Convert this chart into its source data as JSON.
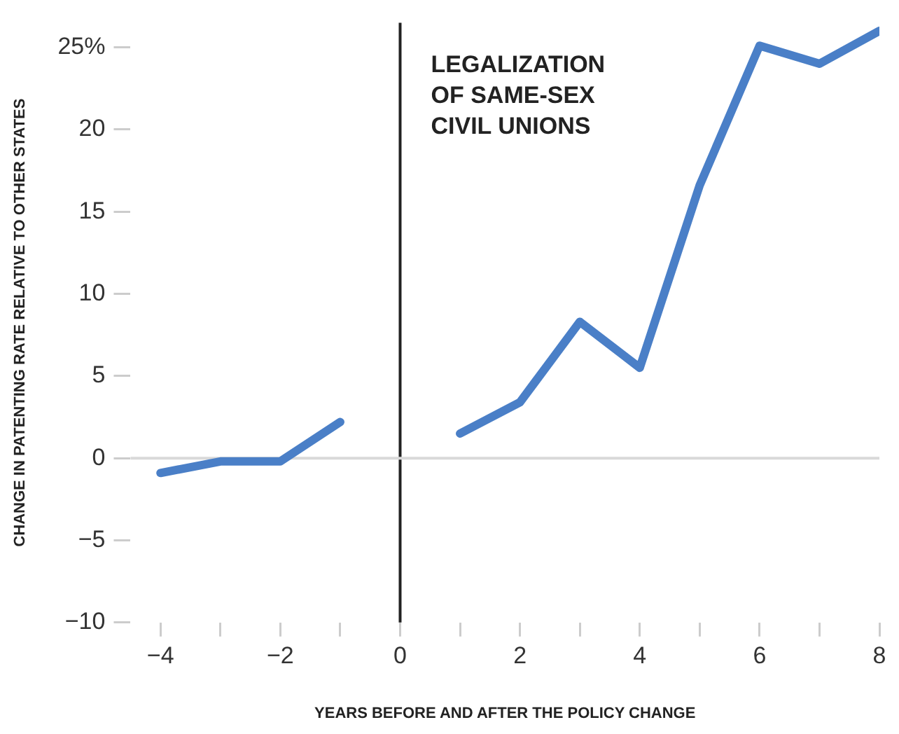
{
  "chart_data": {
    "type": "line",
    "xlabel": "YEARS BEFORE AND AFTER THE POLICY CHANGE",
    "ylabel": "CHANGE IN PATENTING RATE RELATIVE TO OTHER STATES",
    "x": [
      -4,
      -3,
      -2,
      -1,
      0,
      1,
      2,
      3,
      4,
      5,
      6,
      7,
      8
    ],
    "series": [
      {
        "color": "#4a7fc7",
        "values": [
          -0.9,
          -0.2,
          -0.2,
          2.2,
          null,
          1.5,
          3.4,
          8.3,
          5.5,
          16.6,
          25.1,
          24,
          26
        ]
      }
    ],
    "xlim": [
      -4.5,
      8
    ],
    "ylim": [
      -10,
      26.5
    ],
    "xticks": [
      -4,
      {
        "value": -3,
        "label": null
      },
      -2,
      {
        "value": -1,
        "label": null
      },
      0,
      {
        "value": 1,
        "label": null
      },
      2,
      {
        "value": 3,
        "label": null
      },
      4,
      {
        "value": 5,
        "label": null
      },
      6,
      {
        "value": 7,
        "label": null
      },
      8
    ],
    "yticks": [
      -10,
      -5,
      0,
      5,
      10,
      15,
      20,
      {
        "value": 25,
        "label": "25%"
      }
    ],
    "ref_lines": [
      {
        "axis": "x",
        "value": 0,
        "label": "LEGALIZATION OF SAME-SEX CIVIL UNIONS",
        "color": "#222222"
      },
      {
        "axis": "y",
        "value": 0,
        "color": "#d9d9d9"
      }
    ],
    "grid": false,
    "legend": false,
    "marker": "none",
    "line_style": "solid"
  }
}
